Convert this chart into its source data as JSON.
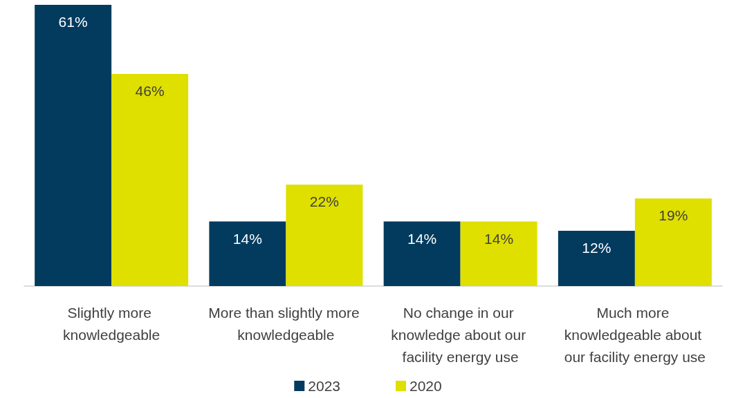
{
  "chart_data": {
    "type": "bar",
    "categories": [
      "Slightly more knowledgeable",
      "More than slightly more knowledgeable",
      "No change in our knowledge about our facility energy use",
      "Much more knowledgeable about our facility energy use"
    ],
    "series": [
      {
        "name": "2023",
        "color": "#033b5f",
        "values": [
          61,
          14,
          14,
          12
        ],
        "value_labels": [
          "61%",
          "14%",
          "14%",
          "12%"
        ]
      },
      {
        "name": "2020",
        "color": "#dfdf00",
        "values": [
          46,
          22,
          14,
          19
        ],
        "value_labels": [
          "46%",
          "22%",
          "14%",
          "19%"
        ]
      }
    ],
    "legend": "bottom"
  }
}
